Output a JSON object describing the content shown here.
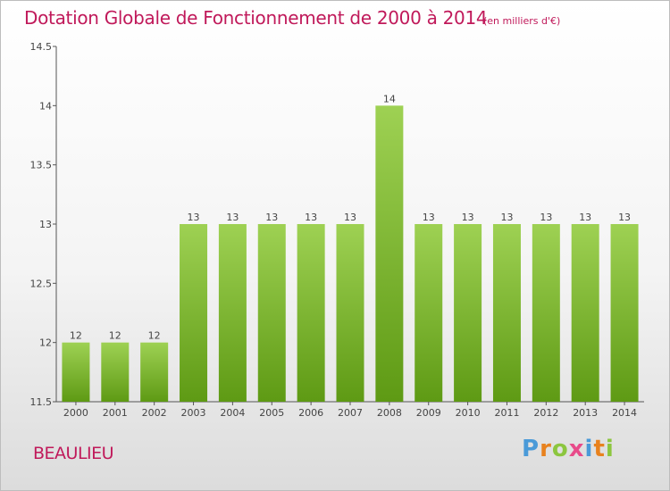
{
  "title": "Dotation Globale de Fonctionnement de 2000 à 2014",
  "subtitle": "(en milliers d'€)",
  "place": "BEAULIEU",
  "logo": {
    "text": "Proxiti",
    "letters": [
      "P",
      "r",
      "o",
      "x",
      "i",
      "t",
      "i"
    ]
  },
  "colors": {
    "title": "#c0195a",
    "bar_top": "#9ed153",
    "bar_bottom": "#5e9a14"
  },
  "chart_data": {
    "type": "bar",
    "categories": [
      "2000",
      "2001",
      "2002",
      "2003",
      "2004",
      "2005",
      "2006",
      "2007",
      "2008",
      "2009",
      "2010",
      "2011",
      "2012",
      "2013",
      "2014"
    ],
    "values": [
      12,
      12,
      12,
      13,
      13,
      13,
      13,
      13,
      14,
      13,
      13,
      13,
      13,
      13,
      13
    ],
    "labels": [
      "12",
      "12",
      "12",
      "13",
      "13",
      "13",
      "13",
      "13",
      "14",
      "13",
      "13",
      "13",
      "13",
      "13",
      "13"
    ],
    "ylim": [
      11.5,
      14.5
    ],
    "yticks": [
      11.5,
      12,
      12.5,
      13,
      13.5,
      14,
      14.5
    ],
    "ytick_labels": [
      "11.5",
      "12",
      "12.5",
      "13",
      "13.5",
      "14",
      "14.5"
    ],
    "grid": false,
    "legend": "none"
  }
}
